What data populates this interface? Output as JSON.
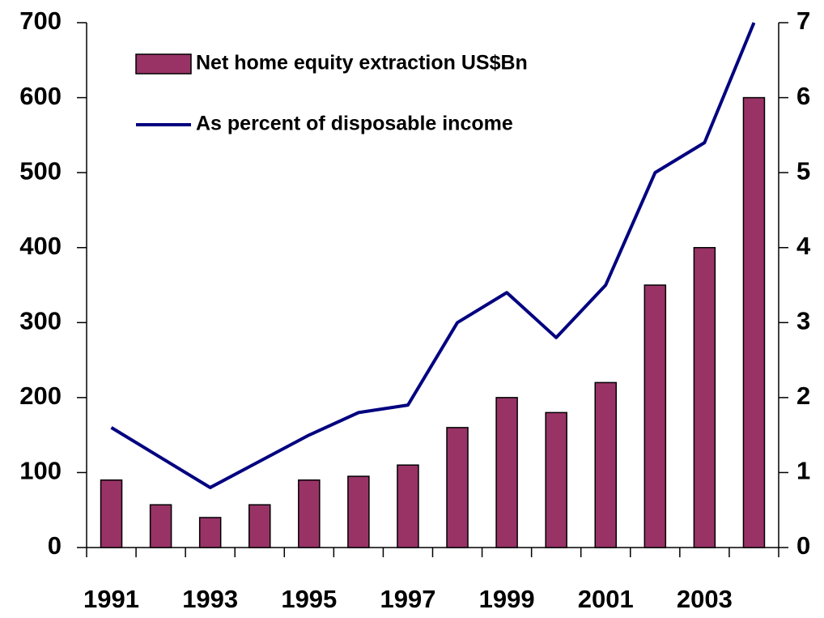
{
  "chart_data": {
    "type": "bar",
    "categories": [
      "1991",
      null,
      "1993",
      null,
      "1995",
      null,
      "1997",
      null,
      "1999",
      null,
      "2001",
      null,
      "2003",
      null
    ],
    "series": [
      {
        "name": "Net home equity extraction US$Bn",
        "type": "bar",
        "color": "#993366",
        "values": [
          90,
          57,
          40,
          57,
          90,
          95,
          110,
          160,
          200,
          180,
          220,
          350,
          400,
          600
        ]
      },
      {
        "name": "As percent of disposable income",
        "type": "line",
        "axis": "y2",
        "color": "#000080",
        "values": [
          1.6,
          1.2,
          0.8,
          1.15,
          1.5,
          1.8,
          1.9,
          3.0,
          3.4,
          2.8,
          3.5,
          5.0,
          5.4,
          7.0
        ]
      }
    ],
    "ylim": [
      0,
      700
    ],
    "yticks": [
      0,
      100,
      200,
      300,
      400,
      500,
      600,
      700
    ],
    "y2lim": [
      0,
      7
    ],
    "y2ticks": [
      0,
      1,
      2,
      3,
      4,
      5,
      6,
      7
    ]
  }
}
